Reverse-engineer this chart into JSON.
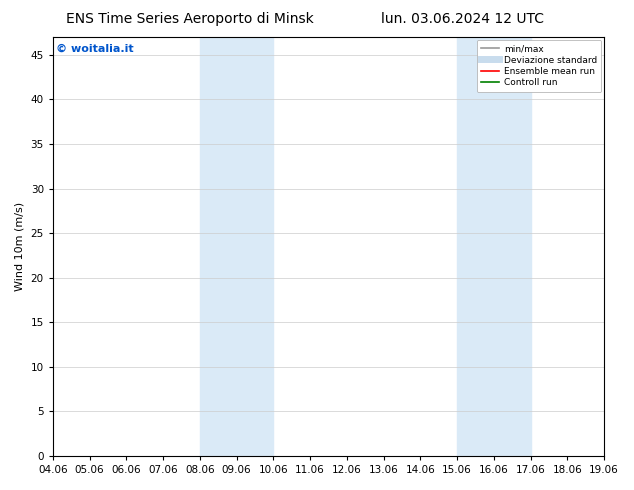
{
  "title_left": "ENS Time Series Aeroporto di Minsk",
  "title_right": "lun. 03.06.2024 12 UTC",
  "ylabel": "Wind 10m (m/s)",
  "watermark": "© woitalia.it",
  "x_tick_labels": [
    "04.06",
    "05.06",
    "06.06",
    "07.06",
    "08.06",
    "09.06",
    "10.06",
    "11.06",
    "12.06",
    "13.06",
    "14.06",
    "15.06",
    "16.06",
    "17.06",
    "18.06",
    "19.06"
  ],
  "x_tick_positions": [
    0,
    1,
    2,
    3,
    4,
    5,
    6,
    7,
    8,
    9,
    10,
    11,
    12,
    13,
    14,
    15
  ],
  "ylim": [
    0,
    47
  ],
  "yticks": [
    0,
    5,
    10,
    15,
    20,
    25,
    30,
    35,
    40,
    45
  ],
  "shaded_regions": [
    {
      "x_start": 4,
      "x_end": 6,
      "color": "#daeaf7"
    },
    {
      "x_start": 11,
      "x_end": 13,
      "color": "#daeaf7"
    }
  ],
  "legend_entries": [
    {
      "label": "min/max",
      "color": "#999999",
      "lw": 1.2,
      "style": "solid"
    },
    {
      "label": "Deviazione standard",
      "color": "#c8dced",
      "lw": 5,
      "style": "solid"
    },
    {
      "label": "Ensemble mean run",
      "color": "red",
      "lw": 1.2,
      "style": "solid"
    },
    {
      "label": "Controll run",
      "color": "green",
      "lw": 1.2,
      "style": "solid"
    }
  ],
  "bg_color": "#ffffff",
  "plot_bg_color": "#ffffff",
  "grid_color": "#cccccc",
  "title_fontsize": 10,
  "label_fontsize": 8,
  "tick_fontsize": 7.5,
  "watermark_color": "#0055cc",
  "watermark_fontsize": 8
}
